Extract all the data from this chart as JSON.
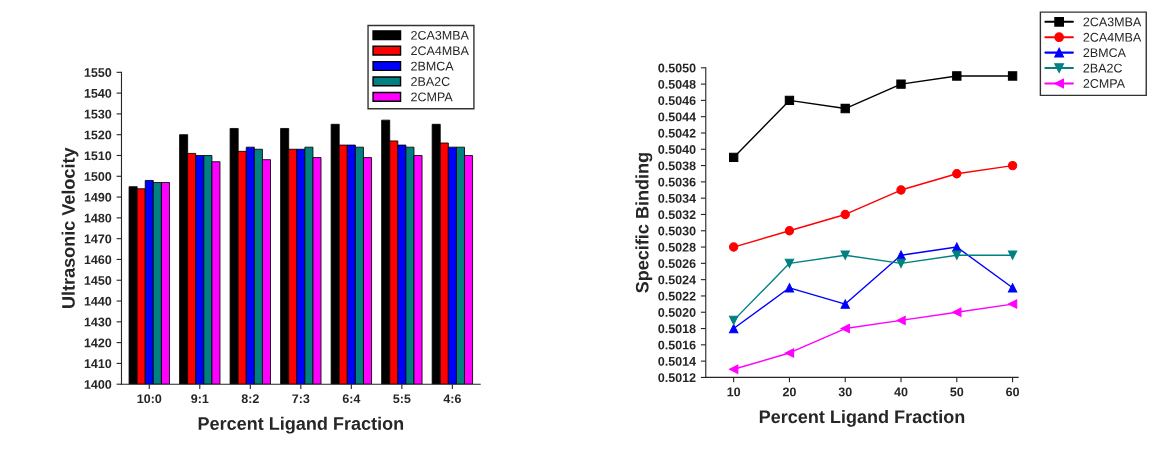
{
  "chart_data": [
    {
      "type": "bar",
      "xlabel": "Percent Ligand Fraction",
      "ylabel": "Ultrasonic Velocity",
      "categories": [
        "10:0",
        "9:1",
        "8:2",
        "7:3",
        "6:4",
        "5:5",
        "4:6"
      ],
      "series": [
        {
          "name": "2CA3MBA",
          "color": "#000000",
          "values": [
            1495,
            1520,
            1523,
            1523,
            1525,
            1527,
            1525
          ]
        },
        {
          "name": "2CA4MBA",
          "color": "#ff0000",
          "values": [
            1494,
            1511,
            1512,
            1513,
            1515,
            1517,
            1516
          ]
        },
        {
          "name": "2BMCA",
          "color": "#0000ff",
          "values": [
            1498,
            1510,
            1514,
            1513,
            1515,
            1515,
            1514
          ]
        },
        {
          "name": "2BA2C",
          "color": "#008080",
          "values": [
            1497,
            1510,
            1513,
            1514,
            1514,
            1514,
            1514
          ]
        },
        {
          "name": "2CMPA",
          "color": "#ff00ff",
          "values": [
            1497,
            1507,
            1508,
            1509,
            1509,
            1510,
            1510
          ]
        }
      ],
      "ylim": [
        1400,
        1550
      ],
      "yticks": [
        1400,
        1410,
        1420,
        1430,
        1440,
        1450,
        1460,
        1470,
        1480,
        1490,
        1500,
        1510,
        1520,
        1530,
        1540,
        1550
      ],
      "legend": "top right",
      "grid": false
    },
    {
      "type": "line",
      "xlabel": "Percent Ligand Fraction",
      "ylabel": "Specific Binding",
      "x": [
        10,
        20,
        30,
        40,
        50,
        60
      ],
      "series": [
        {
          "name": "2CA3MBA",
          "color": "#000000",
          "marker": "square",
          "values": [
            0.5039,
            0.5046,
            0.5045,
            0.5048,
            0.5049,
            0.5049
          ]
        },
        {
          "name": "2CA4MBA",
          "color": "#ff0000",
          "marker": "circle",
          "values": [
            0.5028,
            0.503,
            0.5032,
            0.5035,
            0.5037,
            0.5038
          ]
        },
        {
          "name": "2BMCA",
          "color": "#0000ff",
          "marker": "triangle",
          "values": [
            0.5018,
            0.5023,
            0.5021,
            0.5027,
            0.5028,
            0.5023
          ]
        },
        {
          "name": "2BA2C",
          "color": "#008080",
          "marker": "triangle_down",
          "values": [
            0.5019,
            0.5026,
            0.5027,
            0.5026,
            0.5027,
            0.5027
          ]
        },
        {
          "name": "2CMPA",
          "color": "#ff00ff",
          "marker": "triangle_left",
          "values": [
            0.5013,
            0.5015,
            0.5018,
            0.5019,
            0.502,
            0.5021
          ]
        }
      ],
      "xlim": [
        5,
        61
      ],
      "xticks": [
        10,
        20,
        30,
        40,
        50,
        60
      ],
      "ylim": [
        0.5012,
        0.505
      ],
      "yticks": [
        {
          "value": 0.5012,
          "label": "0.5012"
        },
        {
          "value": 0.5014,
          "label": "0.5014"
        },
        {
          "value": 0.5016,
          "label": "0.5016"
        },
        {
          "value": 0.5018,
          "label": "0.5018"
        },
        {
          "value": 0.502,
          "label": "0.5020"
        },
        {
          "value": 0.5022,
          "label": "0.5022"
        },
        {
          "value": 0.5024,
          "label": "0.5024"
        },
        {
          "value": 0.5026,
          "label": "0.5026"
        },
        {
          "value": 0.5028,
          "label": "0.5028"
        },
        {
          "value": 0.503,
          "label": "0.5030"
        },
        {
          "value": 0.5032,
          "label": "0.5032"
        },
        {
          "value": 0.5034,
          "label": "0.5034"
        },
        {
          "value": 0.5036,
          "label": "0.5036"
        },
        {
          "value": 0.5038,
          "label": "0.5038"
        },
        {
          "value": 0.504,
          "label": "0.5040"
        },
        {
          "value": 0.5042,
          "label": "0.5042"
        },
        {
          "value": 0.5044,
          "label": "0.5044"
        },
        {
          "value": 0.5046,
          "label": "0.5046"
        },
        {
          "value": 0.5048,
          "label": "0.5048"
        },
        {
          "value": 0.505,
          "label": "0.5050"
        }
      ],
      "legend": "top right",
      "grid": false
    }
  ]
}
